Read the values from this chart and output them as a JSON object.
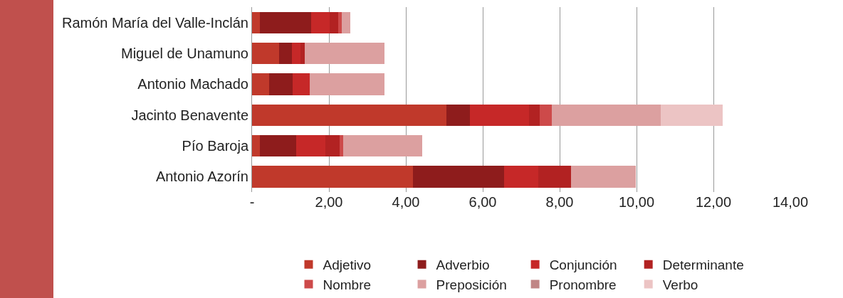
{
  "chart_data": {
    "type": "bar",
    "orientation": "horizontal",
    "stacked": true,
    "categories": [
      "Ramón María del Valle-Inclán",
      "Miguel de Unamuno",
      "Antonio Machado",
      "Jacinto Benavente",
      "Pío Baroja",
      "Antonio Azorín"
    ],
    "series": [
      {
        "name": "Adjetivo",
        "color": "#c0392b",
        "values": [
          0.2,
          0.7,
          0.44,
          5.06,
          0.2,
          4.19
        ]
      },
      {
        "name": "Adverbio",
        "color": "#8e1c1c",
        "values": [
          1.34,
          0.34,
          0.62,
          0.61,
          0.95,
          2.37
        ]
      },
      {
        "name": "Conjunción",
        "color": "#c62828",
        "values": [
          0.48,
          0.22,
          0.44,
          1.53,
          0.76,
          0.88
        ]
      },
      {
        "name": "Determinante",
        "color": "#b22222",
        "values": [
          0.22,
          0.11,
          null,
          0.28,
          0.37,
          0.86
        ]
      },
      {
        "name": "Nombre",
        "color": "#cd4a4a",
        "values": [
          0.09,
          null,
          null,
          0.32,
          0.09,
          null
        ]
      },
      {
        "name": "Preposición",
        "color": "#dca0a0",
        "values": [
          0.23,
          2.07,
          1.94,
          2.83,
          2.06,
          1.68
        ]
      },
      {
        "name": "Pronombre",
        "color": "#c08585",
        "values": [
          null,
          null,
          null,
          null,
          null,
          null
        ]
      },
      {
        "name": "Verbo",
        "color": "#ecc4c4",
        "values": [
          null,
          null,
          null,
          1.61,
          null,
          null
        ]
      }
    ],
    "xlim": [
      0,
      14
    ],
    "xticks": [
      {
        "value": 0,
        "label": "-"
      },
      {
        "value": 2,
        "label": "2,00"
      },
      {
        "value": 4,
        "label": "4,00"
      },
      {
        "value": 6,
        "label": "6,00"
      },
      {
        "value": 8,
        "label": "8,00"
      },
      {
        "value": 10,
        "label": "10,00"
      },
      {
        "value": 12,
        "label": "12,00"
      },
      {
        "value": 14,
        "label": "14,00"
      }
    ],
    "grid": "x",
    "legend": "bottom"
  }
}
